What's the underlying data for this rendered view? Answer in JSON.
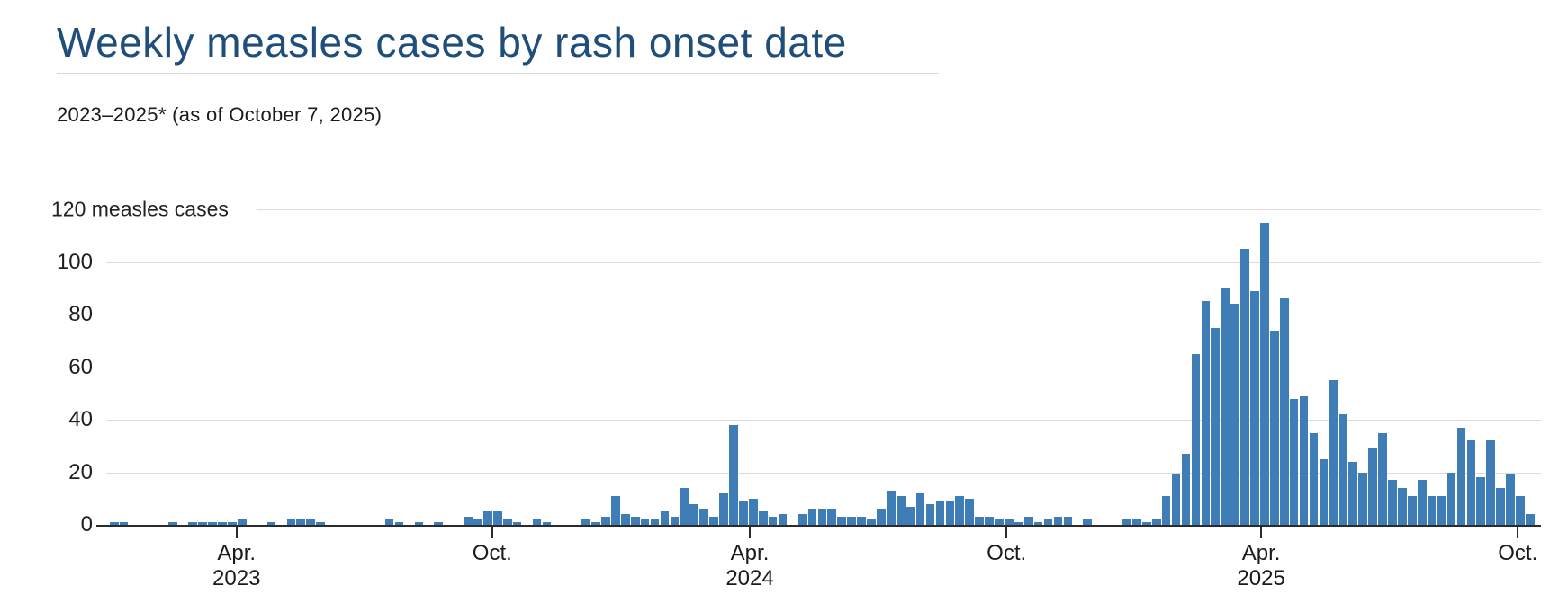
{
  "header": {
    "title": "Weekly measles cases by rash onset date",
    "subtitle": "2023–2025* (as of October 7, 2025)"
  },
  "chart_data": {
    "type": "bar",
    "title": "Weekly measles cases by rash onset date",
    "subtitle": "2023–2025* (as of October 7, 2025)",
    "unit": "measles cases",
    "y_top_label": "120 measles cases",
    "ylim": [
      0,
      120
    ],
    "y_ticks": [
      0,
      20,
      40,
      60,
      80,
      100
    ],
    "grid": "horizontal",
    "legend": "none",
    "bar_color": "#3e7db6",
    "interval": "weekly",
    "start_date": "2023-01-01",
    "x_ticks": [
      {
        "label": "Apr.",
        "year": "2023",
        "week_index": 13.8
      },
      {
        "label": "Oct.",
        "year": "",
        "week_index": 39.8
      },
      {
        "label": "Apr.",
        "year": "2024",
        "week_index": 66.0
      },
      {
        "label": "Oct.",
        "year": "",
        "week_index": 92.1
      },
      {
        "label": "Apr.",
        "year": "2025",
        "week_index": 118.0
      },
      {
        "label": "Oct.",
        "year": "",
        "week_index": 144.1
      }
    ],
    "year_order": [
      "2023",
      "2024",
      "2025"
    ],
    "values_by_year": {
      "2023": [
        0,
        1,
        1,
        0,
        0,
        0,
        0,
        1,
        0,
        1,
        1,
        1,
        1,
        1,
        2,
        0,
        0,
        1,
        0,
        2,
        2,
        2,
        1,
        0,
        0,
        0,
        0,
        0,
        0,
        2,
        1,
        0,
        1,
        0,
        1,
        0,
        0,
        3,
        2,
        5,
        5,
        2,
        1,
        0,
        2,
        1,
        0,
        0,
        0,
        2,
        1,
        3
      ],
      "2024": [
        11,
        4,
        3,
        2,
        2,
        5,
        3,
        14,
        8,
        6,
        3,
        12,
        38,
        9,
        10,
        5,
        3,
        4,
        0,
        4,
        6,
        6,
        6,
        3,
        3,
        3,
        2,
        6,
        13,
        11,
        7,
        12,
        8,
        9,
        9,
        11,
        10,
        3,
        3,
        2,
        2,
        1,
        3,
        1,
        2,
        3,
        3,
        0,
        2,
        0,
        0,
        0
      ],
      "2025": [
        2,
        2,
        1,
        2,
        11,
        19,
        27,
        65,
        85,
        75,
        90,
        84,
        105,
        89,
        115,
        74,
        86,
        48,
        49,
        35,
        25,
        55,
        42,
        24,
        20,
        29,
        35,
        17,
        14,
        11,
        17,
        11,
        11,
        20,
        37,
        32,
        18,
        32,
        14,
        19,
        11,
        4
      ]
    }
  }
}
